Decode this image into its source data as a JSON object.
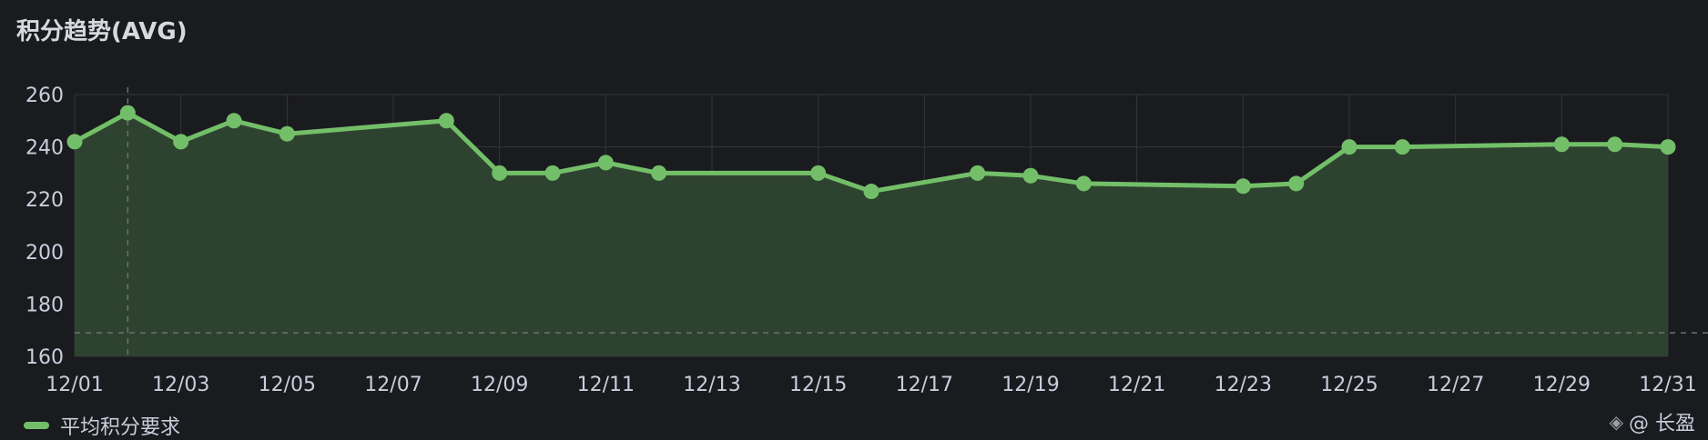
{
  "panel": {
    "title": "积分趋势(AVG)"
  },
  "legend": {
    "label": "平均积分要求",
    "color": "#73bf69"
  },
  "watermark": {
    "text": "@ 长盈",
    "icon": "diamond-logo-icon"
  },
  "colors": {
    "background": "#1a1b1f",
    "line": "#73bf69",
    "area": "#2e432f",
    "grid": "#33353a"
  },
  "chart_data": {
    "type": "area",
    "title": "积分趋势(AVG)",
    "xlabel": "",
    "ylabel": "",
    "x_ticks": [
      "12/01",
      "12/03",
      "12/05",
      "12/07",
      "12/09",
      "12/11",
      "12/13",
      "12/15",
      "12/17",
      "12/19",
      "12/21",
      "12/23",
      "12/25",
      "12/27",
      "12/29",
      "12/31"
    ],
    "y_ticks": [
      "160",
      "180",
      "200",
      "220",
      "240",
      "260"
    ],
    "ylim": [
      160,
      260
    ],
    "xlim": [
      "12/01",
      "12/31"
    ],
    "grid": true,
    "legend_position": "bottom-left",
    "reference_line": 169,
    "hover_marker_x": "12/02",
    "series": [
      {
        "name": "平均积分要求",
        "points": [
          {
            "x": "12/01",
            "y": 242
          },
          {
            "x": "12/02",
            "y": 253
          },
          {
            "x": "12/03",
            "y": 242
          },
          {
            "x": "12/04",
            "y": 250
          },
          {
            "x": "12/05",
            "y": 245
          },
          {
            "x": "12/08",
            "y": 250
          },
          {
            "x": "12/09",
            "y": 230
          },
          {
            "x": "12/10",
            "y": 230
          },
          {
            "x": "12/11",
            "y": 234
          },
          {
            "x": "12/12",
            "y": 230
          },
          {
            "x": "12/15",
            "y": 230
          },
          {
            "x": "12/16",
            "y": 223
          },
          {
            "x": "12/18",
            "y": 230
          },
          {
            "x": "12/19",
            "y": 229
          },
          {
            "x": "12/20",
            "y": 226
          },
          {
            "x": "12/23",
            "y": 225
          },
          {
            "x": "12/24",
            "y": 226
          },
          {
            "x": "12/25",
            "y": 240
          },
          {
            "x": "12/26",
            "y": 240
          },
          {
            "x": "12/29",
            "y": 241
          },
          {
            "x": "12/30",
            "y": 241
          },
          {
            "x": "12/31",
            "y": 240
          }
        ]
      }
    ]
  }
}
